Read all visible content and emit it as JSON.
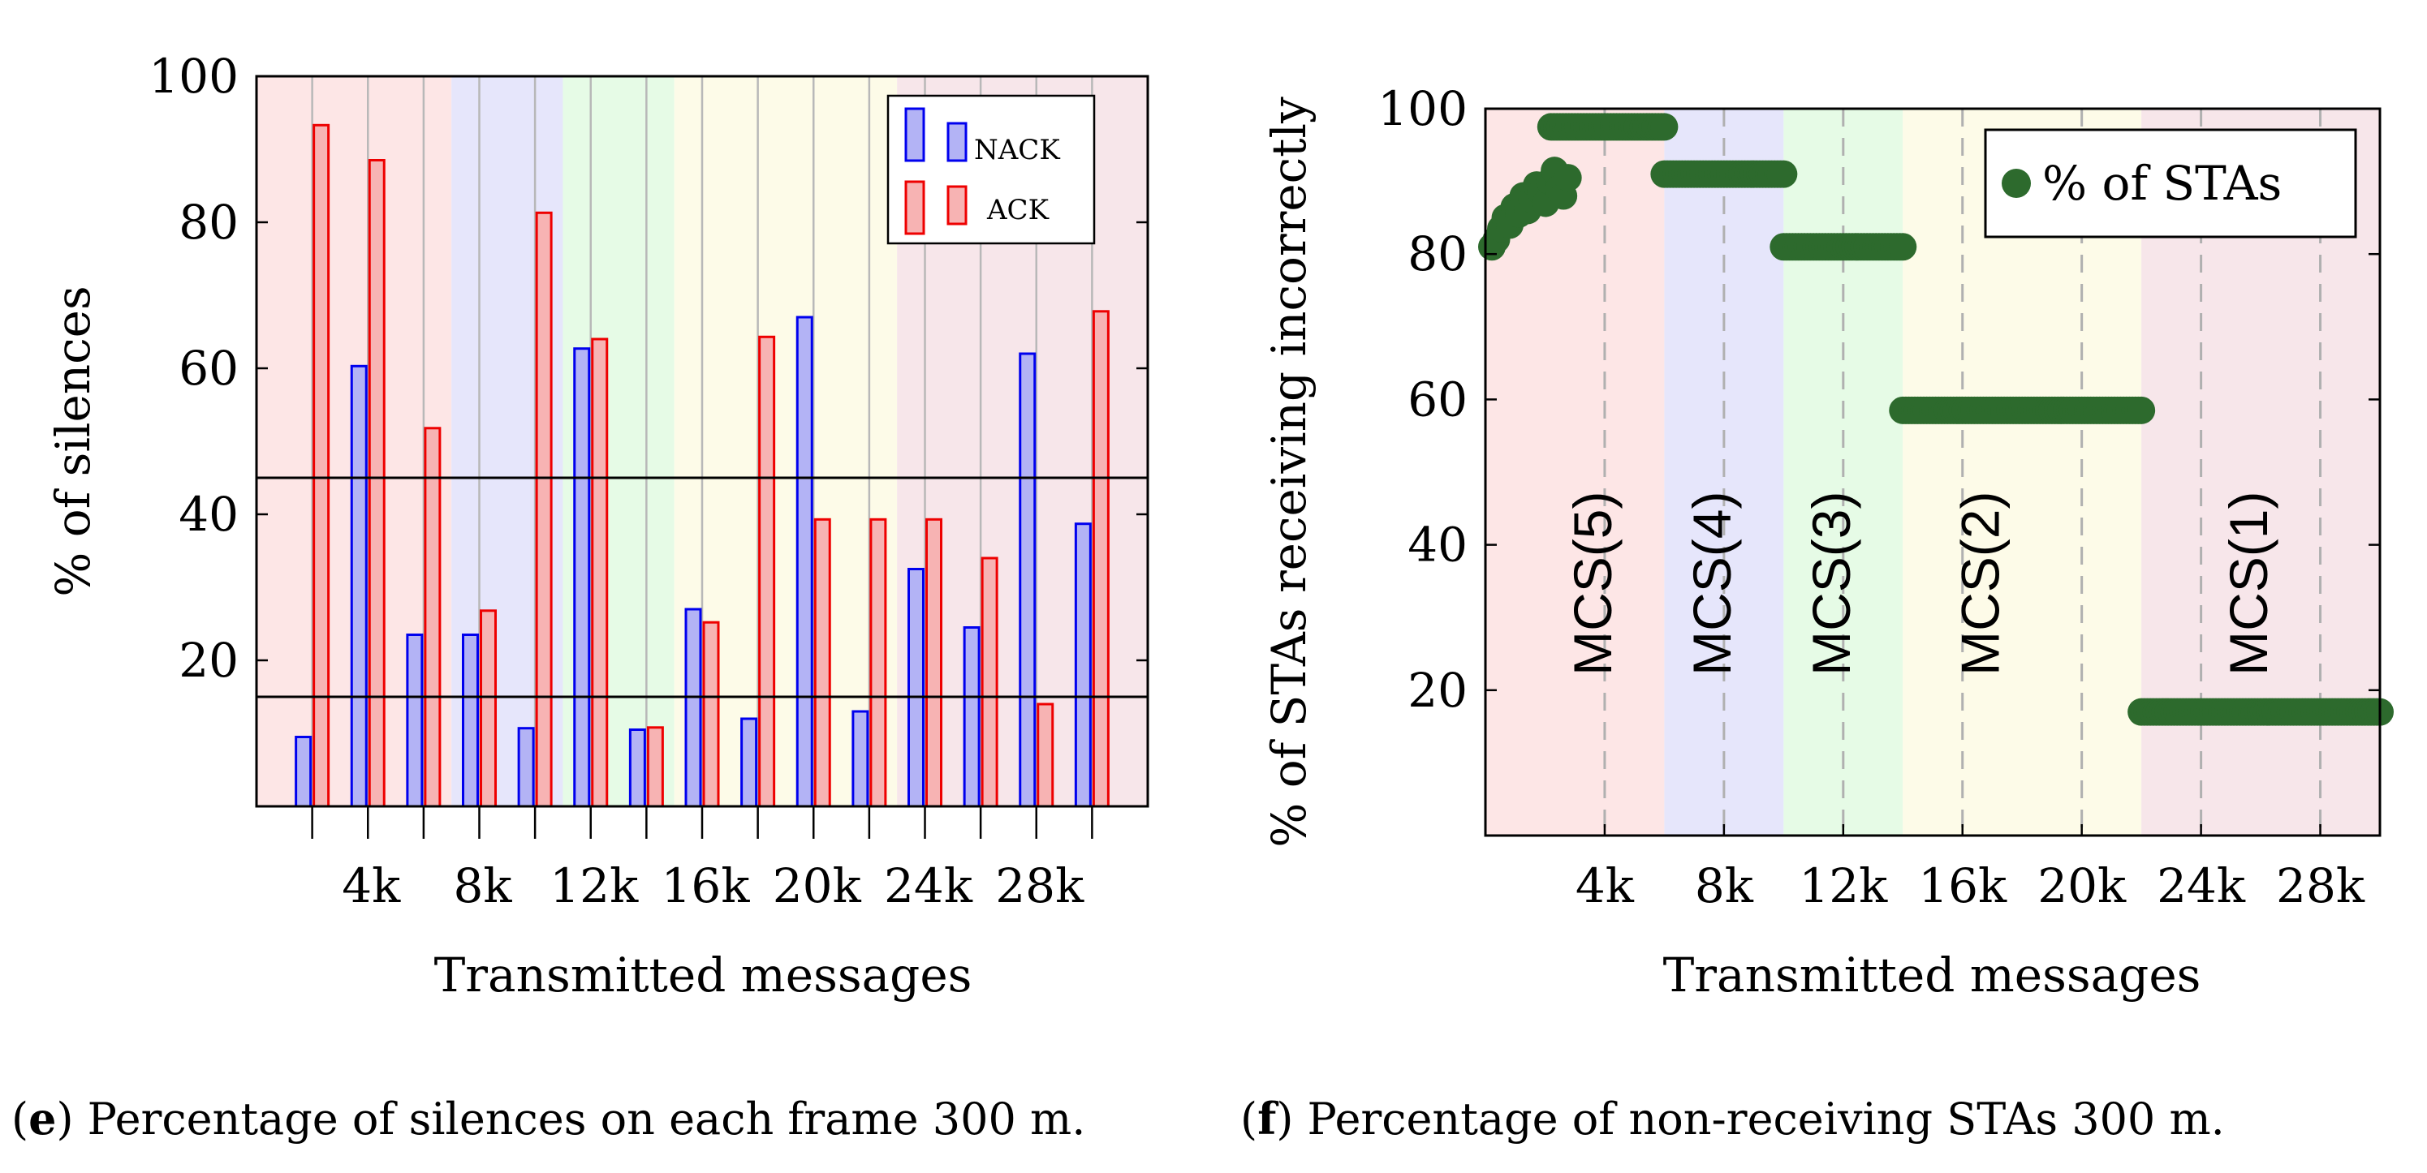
{
  "colors": {
    "band_red": "#fde6e6",
    "band_blue": "#e6e6fb",
    "band_green": "#e6fbe6",
    "band_yellow": "#fdfbe8",
    "band_pink": "#f7e6ea",
    "nack_stroke": "#0000ee",
    "nack_fill": "#b3b3f5",
    "ack_stroke": "#ee0000",
    "ack_fill": "#f7b3b3",
    "sta_marker": "#2d6a2d"
  },
  "chart_data": [
    {
      "type": "bar",
      "name": "silences",
      "ylabel": "% of silences",
      "xlabel": "Transmitted messages",
      "ylim": [
        0,
        100
      ],
      "xlim": [
        0,
        32000
      ],
      "y_ticks": [
        20,
        40,
        60,
        80,
        100
      ],
      "x_ticks": [
        4000,
        8000,
        12000,
        16000,
        20000,
        24000,
        28000
      ],
      "x_tick_labels": [
        "4k",
        "8k",
        "12k",
        "16k",
        "20k",
        "24k",
        "28k"
      ],
      "grid_x": [
        2000,
        4000,
        6000,
        8000,
        10000,
        12000,
        14000,
        16000,
        18000,
        20000,
        22000,
        24000,
        26000,
        28000,
        30000
      ],
      "reference_lines": [
        45,
        15
      ],
      "bands": [
        {
          "from": 0,
          "to": 7000,
          "color_key": "band_red"
        },
        {
          "from": 7000,
          "to": 11000,
          "color_key": "band_blue"
        },
        {
          "from": 11000,
          "to": 15000,
          "color_key": "band_green"
        },
        {
          "from": 15000,
          "to": 23000,
          "color_key": "band_yellow"
        },
        {
          "from": 23000,
          "to": 32000,
          "color_key": "band_pink"
        }
      ],
      "categories": [
        2000,
        4000,
        6000,
        8000,
        10000,
        12000,
        14000,
        16000,
        18000,
        20000,
        22000,
        24000,
        26000,
        28000,
        30000
      ],
      "series": [
        {
          "name": "NACK",
          "values": [
            9.5,
            60.3,
            23.5,
            23.5,
            10.7,
            62.7,
            10.5,
            27,
            12,
            67,
            13,
            32.5,
            24.5,
            62,
            38.7
          ]
        },
        {
          "name": "ACK",
          "values": [
            93.3,
            88.5,
            51.8,
            26.8,
            81.3,
            64,
            10.8,
            25.2,
            64.3,
            39.3,
            39.3,
            39.3,
            34,
            14,
            67.8
          ]
        }
      ],
      "legend": {
        "position": "top-right",
        "entries": [
          "NACK",
          "ACK"
        ]
      }
    },
    {
      "type": "scatter",
      "name": "stas",
      "ylabel": "% of STAs receiving incorrectly",
      "xlabel": "Transmitted messages",
      "ylim": [
        0,
        100
      ],
      "xlim": [
        0,
        30000
      ],
      "y_ticks": [
        20,
        40,
        60,
        80,
        100
      ],
      "x_ticks": [
        4000,
        8000,
        12000,
        16000,
        20000,
        24000,
        28000
      ],
      "x_tick_labels": [
        "4k",
        "8k",
        "12k",
        "16k",
        "20k",
        "24k",
        "28k"
      ],
      "grid_x": [
        4000,
        8000,
        12000,
        16000,
        20000,
        24000,
        28000
      ],
      "bands": [
        {
          "from": 0,
          "to": 6000,
          "color_key": "band_red",
          "label": "MCS(5)",
          "label_x": 4000
        },
        {
          "from": 6000,
          "to": 10000,
          "color_key": "band_blue",
          "label": "MCS(4)",
          "label_x": 8000
        },
        {
          "from": 10000,
          "to": 14000,
          "color_key": "band_green",
          "label": "MCS(3)",
          "label_x": 12000
        },
        {
          "from": 14000,
          "to": 22000,
          "color_key": "band_yellow",
          "label": "MCS(2)",
          "label_x": 17000
        },
        {
          "from": 22000,
          "to": 30000,
          "color_key": "band_pink",
          "label": "MCS(1)",
          "label_x": 26000
        }
      ],
      "early_points": [
        [
          0,
          81
        ],
        [
          150,
          82
        ],
        [
          300,
          83.5
        ],
        [
          450,
          85
        ],
        [
          600,
          84
        ],
        [
          750,
          86.5
        ],
        [
          900,
          85.5
        ],
        [
          1050,
          88
        ],
        [
          1200,
          86
        ],
        [
          1350,
          87.5
        ],
        [
          1500,
          89.5
        ],
        [
          1650,
          88.5
        ],
        [
          1800,
          87
        ],
        [
          1950,
          90
        ],
        [
          2100,
          91.5
        ],
        [
          2250,
          89
        ],
        [
          2400,
          88
        ],
        [
          2550,
          90.5
        ]
      ],
      "segments": [
        {
          "from": 2200,
          "to": 6000,
          "y": 97.5
        },
        {
          "from": 6000,
          "to": 10000,
          "y": 91
        },
        {
          "from": 10000,
          "to": 14000,
          "y": 81
        },
        {
          "from": 14000,
          "to": 22000,
          "y": 58.5
        },
        {
          "from": 22000,
          "to": 30000,
          "y": 17
        }
      ],
      "legend": {
        "position": "top-right",
        "entries": [
          "% of STAs"
        ]
      }
    }
  ],
  "captions": {
    "e_letter": "e",
    "e_text": ") Percentage of silences on each frame 300 m.",
    "f_letter": "f",
    "f_text": ") Percentage of non-receiving STAs 300 m."
  }
}
